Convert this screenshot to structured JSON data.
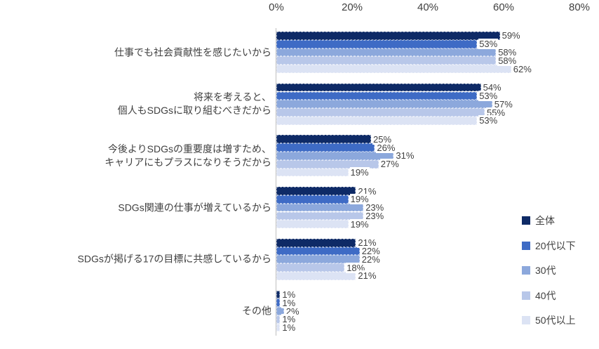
{
  "chart_data": {
    "type": "bar",
    "orientation": "horizontal",
    "title": "",
    "categories": [
      [
        "仕事でも社会貢献性を感じたいから"
      ],
      [
        "将来を考えると、",
        "個人もSDGsに取り組むべきだから"
      ],
      [
        "今後よりSDGsの重要度は増すため、",
        "キャリアにもプラスになりそうだから"
      ],
      [
        "SDGs関連の仕事が増えているから"
      ],
      [
        "SDGsが掲げる17の目標に共感しているから"
      ],
      [
        "その他"
      ]
    ],
    "series": [
      {
        "name": "全体",
        "color": "#0e2a66",
        "values": [
          59,
          54,
          25,
          21,
          21,
          1
        ]
      },
      {
        "name": "20代以下",
        "color": "#3e6bc5",
        "values": [
          53,
          53,
          26,
          19,
          22,
          1
        ]
      },
      {
        "name": "30代",
        "color": "#8ca8dc",
        "values": [
          58,
          57,
          31,
          23,
          22,
          2
        ]
      },
      {
        "name": "40代",
        "color": "#b8c7e9",
        "values": [
          58,
          55,
          27,
          23,
          18,
          1
        ]
      },
      {
        "name": "50代以上",
        "color": "#dce3f4",
        "values": [
          62,
          53,
          19,
          19,
          21,
          1
        ]
      }
    ],
    "value_labels": true,
    "value_suffix": "%",
    "x_axis": {
      "position": "top",
      "min": 0,
      "max": 80,
      "tick_step": 20,
      "ticks": [
        "0%",
        "20%",
        "40%",
        "60%",
        "80%"
      ]
    },
    "legend_position": "right",
    "grid": false,
    "style_colors": {
      "axis_line": "#bfbfbf",
      "tick_text": "#404040",
      "value_text": "#404040",
      "category_text": "#3f3f3f"
    }
  }
}
